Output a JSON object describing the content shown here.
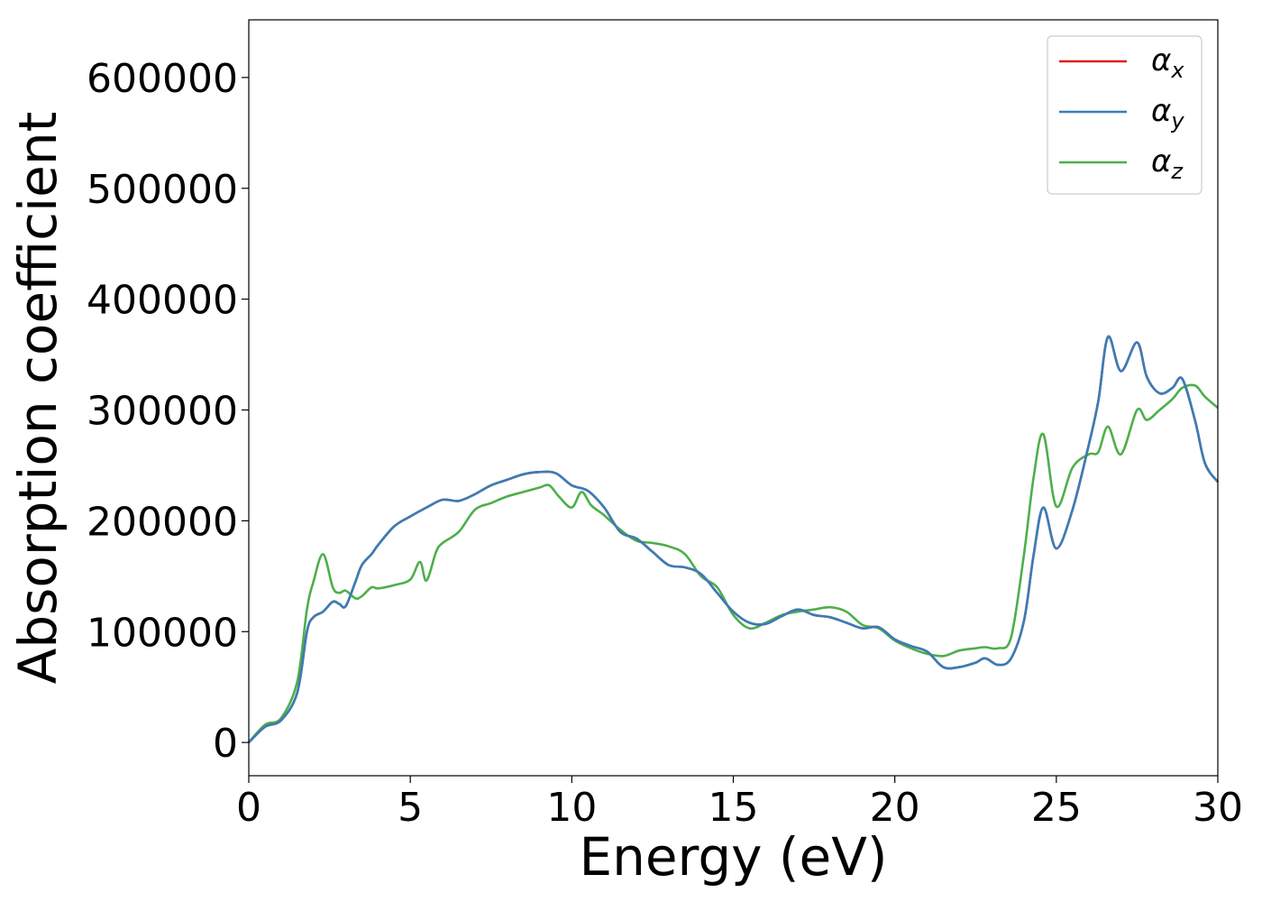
{
  "chart_data": {
    "type": "line",
    "title": "",
    "xlabel": "Energy (eV)",
    "ylabel": "Absorption coefficient",
    "xlim": [
      0,
      30
    ],
    "ylim": [
      -30000,
      652000
    ],
    "xticks": [
      0,
      5,
      10,
      15,
      20,
      25,
      30
    ],
    "xtick_labels": [
      "0",
      "5",
      "10",
      "15",
      "20",
      "25",
      "30"
    ],
    "yticks": [
      0,
      100000,
      200000,
      300000,
      400000,
      500000,
      600000
    ],
    "ytick_labels": [
      "0",
      "100000",
      "200000",
      "300000",
      "400000",
      "500000",
      "600000"
    ],
    "grid": false,
    "legend_position": "top-right",
    "series": [
      {
        "name": "α_x",
        "legend_symbol": "α",
        "legend_subscript": "x",
        "color": "#e41a1c",
        "x": [
          0,
          0.5,
          1.0,
          1.5,
          1.8,
          2.0,
          2.3,
          2.6,
          2.8,
          3.0,
          3.3,
          3.5,
          3.8,
          4.0,
          4.5,
          5.0,
          5.5,
          6.0,
          6.5,
          7.0,
          7.5,
          8.0,
          8.5,
          9.0,
          9.5,
          10.0,
          10.5,
          11.0,
          11.5,
          12.0,
          12.5,
          13.0,
          13.5,
          14.0,
          14.5,
          15.0,
          15.5,
          16.0,
          16.5,
          17.0,
          17.5,
          18.0,
          18.5,
          19.0,
          19.5,
          20.0,
          20.5,
          21.0,
          21.5,
          22.0,
          22.5,
          22.8,
          23.2,
          23.6,
          24.0,
          24.3,
          24.6,
          25.0,
          25.5,
          26.0,
          26.3,
          26.6,
          27.0,
          27.5,
          27.8,
          28.2,
          28.6,
          28.9,
          29.3,
          29.6,
          30.0
        ],
        "y": [
          0,
          14000,
          20000,
          45000,
          100000,
          113000,
          118000,
          127000,
          125000,
          123000,
          145000,
          160000,
          170000,
          178000,
          195000,
          204000,
          212000,
          219000,
          218000,
          224000,
          232000,
          237000,
          242000,
          244000,
          243000,
          232000,
          227000,
          212000,
          190000,
          184000,
          172000,
          160000,
          158000,
          152000,
          135000,
          118000,
          108000,
          107000,
          114000,
          120000,
          115000,
          113000,
          108000,
          103000,
          104000,
          93000,
          87000,
          82000,
          68000,
          68000,
          72000,
          76000,
          70000,
          76000,
          110000,
          170000,
          212000,
          175000,
          210000,
          268000,
          308000,
          366000,
          335000,
          361000,
          330000,
          315000,
          320000,
          328000,
          290000,
          252000,
          235000
        ]
      },
      {
        "name": "α_y",
        "legend_symbol": "α",
        "legend_subscript": "y",
        "color": "#377eb8",
        "x": [
          0,
          0.5,
          1.0,
          1.5,
          1.8,
          2.0,
          2.3,
          2.6,
          2.8,
          3.0,
          3.3,
          3.5,
          3.8,
          4.0,
          4.5,
          5.0,
          5.5,
          6.0,
          6.5,
          7.0,
          7.5,
          8.0,
          8.5,
          9.0,
          9.5,
          10.0,
          10.5,
          11.0,
          11.5,
          12.0,
          12.5,
          13.0,
          13.5,
          14.0,
          14.5,
          15.0,
          15.5,
          16.0,
          16.5,
          17.0,
          17.5,
          18.0,
          18.5,
          19.0,
          19.5,
          20.0,
          20.5,
          21.0,
          21.5,
          22.0,
          22.5,
          22.8,
          23.2,
          23.6,
          24.0,
          24.3,
          24.6,
          25.0,
          25.5,
          26.0,
          26.3,
          26.6,
          27.0,
          27.5,
          27.8,
          28.2,
          28.6,
          28.9,
          29.3,
          29.6,
          30.0
        ],
        "y": [
          0,
          14000,
          20000,
          45000,
          100000,
          113000,
          118000,
          127000,
          125000,
          123000,
          145000,
          160000,
          170000,
          178000,
          195000,
          204000,
          212000,
          219000,
          218000,
          224000,
          232000,
          237000,
          242000,
          244000,
          243000,
          232000,
          227000,
          212000,
          190000,
          184000,
          172000,
          160000,
          158000,
          152000,
          135000,
          118000,
          108000,
          107000,
          114000,
          120000,
          115000,
          113000,
          108000,
          103000,
          104000,
          93000,
          87000,
          82000,
          68000,
          68000,
          72000,
          76000,
          70000,
          76000,
          110000,
          170000,
          212000,
          175000,
          210000,
          268000,
          308000,
          366000,
          335000,
          361000,
          330000,
          315000,
          320000,
          328000,
          290000,
          252000,
          235000
        ]
      },
      {
        "name": "α_z",
        "legend_symbol": "α",
        "legend_subscript": "z",
        "color": "#4daf4a",
        "x": [
          0,
          0.5,
          1.0,
          1.5,
          1.8,
          2.0,
          2.3,
          2.6,
          2.8,
          3.0,
          3.3,
          3.5,
          3.8,
          4.0,
          4.5,
          5.0,
          5.3,
          5.5,
          5.8,
          6.0,
          6.5,
          7.0,
          7.5,
          8.0,
          8.5,
          9.0,
          9.3,
          9.6,
          10.0,
          10.3,
          10.6,
          11.0,
          11.5,
          12.0,
          12.5,
          13.0,
          13.5,
          14.0,
          14.5,
          15.0,
          15.5,
          16.0,
          16.5,
          17.0,
          17.5,
          18.0,
          18.5,
          19.0,
          19.5,
          20.0,
          20.5,
          21.0,
          21.5,
          22.0,
          22.5,
          22.8,
          23.2,
          23.6,
          24.0,
          24.3,
          24.6,
          25.0,
          25.5,
          26.0,
          26.3,
          26.6,
          27.0,
          27.5,
          27.8,
          28.2,
          28.6,
          28.9,
          29.3,
          29.6,
          30.0
        ],
        "y": [
          0,
          16000,
          22000,
          55000,
          120000,
          145000,
          170000,
          140000,
          135000,
          137000,
          130000,
          132000,
          140000,
          139000,
          142000,
          147000,
          163000,
          146000,
          172000,
          180000,
          190000,
          210000,
          216000,
          222000,
          226000,
          230000,
          232000,
          222000,
          212000,
          226000,
          214000,
          205000,
          192000,
          182000,
          180000,
          177000,
          170000,
          150000,
          140000,
          115000,
          103000,
          108000,
          115000,
          118000,
          120000,
          122000,
          118000,
          106000,
          103000,
          92000,
          85000,
          80000,
          78000,
          83000,
          85000,
          86000,
          85000,
          95000,
          170000,
          240000,
          278000,
          213000,
          248000,
          260000,
          262000,
          285000,
          260000,
          300000,
          291000,
          300000,
          310000,
          320000,
          322000,
          312000,
          302000
        ]
      }
    ]
  }
}
